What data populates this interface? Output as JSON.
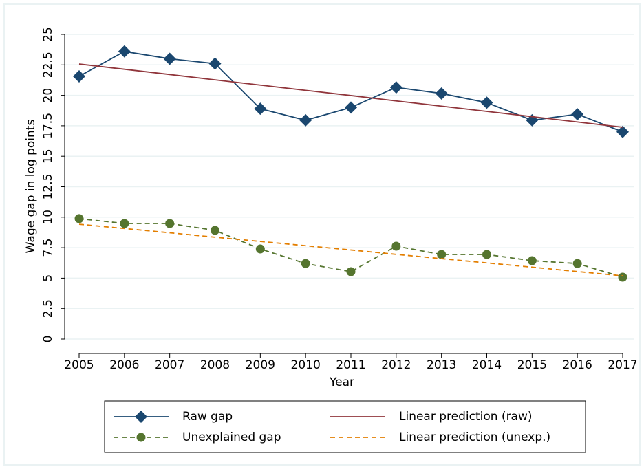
{
  "chart_data": {
    "type": "line",
    "x": [
      2005,
      2006,
      2007,
      2008,
      2009,
      2010,
      2011,
      2012,
      2013,
      2014,
      2015,
      2016,
      2017
    ],
    "xlim": [
      2005,
      2017
    ],
    "xticks": [
      2005,
      2006,
      2007,
      2008,
      2009,
      2010,
      2011,
      2012,
      2013,
      2014,
      2015,
      2016,
      2017
    ],
    "ylim": [
      0,
      25
    ],
    "yticks": [
      0,
      2.5,
      5,
      7.5,
      10,
      12.5,
      15,
      17.5,
      20,
      22.5,
      25
    ],
    "x_label": "Year",
    "y_label": "Wage gap in log points",
    "grid": true,
    "series": [
      {
        "name": "Raw gap",
        "color": "#1a476f",
        "marker": "diamond",
        "line_style": "solid",
        "values": [
          21.56,
          23.6,
          23.0,
          22.6,
          18.9,
          17.95,
          19.0,
          20.65,
          20.15,
          19.4,
          17.95,
          18.45,
          17.0
        ]
      },
      {
        "name": "Linear prediction (raw)",
        "color": "#90353b",
        "marker": "none",
        "line_style": "solid",
        "values": [
          22.57,
          22.14,
          21.71,
          21.27,
          20.84,
          20.41,
          19.98,
          19.54,
          19.11,
          18.68,
          18.25,
          17.81,
          17.38
        ]
      },
      {
        "name": "Unexplained gap",
        "color": "#55752f",
        "marker": "circle",
        "line_style": "dashed",
        "values": [
          9.88,
          9.48,
          9.48,
          8.92,
          7.39,
          6.2,
          5.53,
          7.62,
          6.94,
          6.94,
          6.43,
          6.2,
          5.08
        ]
      },
      {
        "name": "Linear prediction (unexp.)",
        "color": "#e37e00",
        "marker": "none",
        "line_style": "dashed",
        "values": [
          9.42,
          9.07,
          8.72,
          8.36,
          8.01,
          7.66,
          7.31,
          6.95,
          6.6,
          6.25,
          5.9,
          5.54,
          5.19
        ]
      }
    ]
  }
}
